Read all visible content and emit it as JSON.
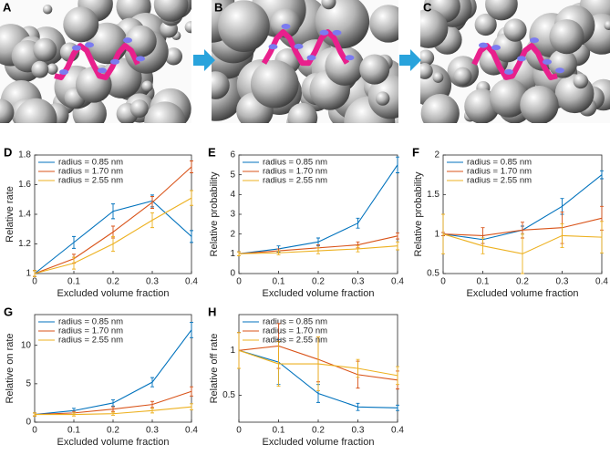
{
  "images": [
    {
      "panel": "A"
    },
    {
      "panel": "B"
    },
    {
      "panel": "C"
    }
  ],
  "chart_data": [
    {
      "type": "line",
      "panel": "D",
      "xlabel": "Excluded volume fraction",
      "ylabel": "Relative rate",
      "x": [
        0,
        0.1,
        0.2,
        0.3,
        0.4
      ],
      "xlim": [
        0,
        0.4
      ],
      "xticks": [
        0,
        0.1,
        0.2,
        0.3,
        0.4
      ],
      "ylim": [
        1,
        1.8
      ],
      "yticks": [
        1,
        1.2,
        1.4,
        1.6,
        1.8
      ],
      "legend": "upper-left",
      "series": [
        {
          "name": "radius = 0.85 nm",
          "color": "#0072bd",
          "values": [
            1,
            1.21,
            1.42,
            1.49,
            1.25
          ],
          "errors": [
            0.02,
            0.04,
            0.05,
            0.04,
            0.04
          ]
        },
        {
          "name": "radius = 1.70 nm",
          "color": "#d95319",
          "values": [
            1,
            1.1,
            1.28,
            1.48,
            1.72
          ],
          "errors": [
            0.02,
            0.03,
            0.04,
            0.04,
            0.04
          ]
        },
        {
          "name": "radius = 2.55 nm",
          "color": "#edb120",
          "values": [
            1,
            1.07,
            1.2,
            1.36,
            1.51
          ],
          "errors": [
            0.02,
            0.04,
            0.05,
            0.05,
            0.05
          ]
        }
      ]
    },
    {
      "type": "line",
      "panel": "E",
      "xlabel": "Excluded volume fraction",
      "ylabel": "Relative probability",
      "x": [
        0,
        0.1,
        0.2,
        0.3,
        0.4
      ],
      "xlim": [
        0,
        0.4
      ],
      "xticks": [
        0,
        0.1,
        0.2,
        0.3,
        0.4
      ],
      "ylim": [
        0,
        6
      ],
      "yticks": [
        0,
        1,
        2,
        3,
        4,
        5,
        6
      ],
      "legend": "upper-left",
      "series": [
        {
          "name": "radius = 0.85 nm",
          "color": "#0072bd",
          "values": [
            1,
            1.25,
            1.6,
            2.55,
            5.5
          ],
          "errors": [
            0.1,
            0.15,
            0.2,
            0.25,
            0.4
          ]
        },
        {
          "name": "radius = 1.70 nm",
          "color": "#d95319",
          "values": [
            1,
            1.15,
            1.3,
            1.45,
            1.9
          ],
          "errors": [
            0.1,
            0.1,
            0.15,
            0.15,
            0.15
          ]
        },
        {
          "name": "radius = 2.55 nm",
          "color": "#edb120",
          "values": [
            1,
            1.05,
            1.15,
            1.25,
            1.4
          ],
          "errors": [
            0.1,
            0.1,
            0.15,
            0.15,
            0.2
          ]
        }
      ]
    },
    {
      "type": "line",
      "panel": "F",
      "xlabel": "Excluded volume fraction",
      "ylabel": "Relative probability",
      "x": [
        0,
        0.1,
        0.2,
        0.3,
        0.4
      ],
      "xlim": [
        0,
        0.4
      ],
      "xticks": [
        0,
        0.1,
        0.2,
        0.3,
        0.4
      ],
      "ylim": [
        0.5,
        2
      ],
      "yticks": [
        0.5,
        1,
        1.5,
        2
      ],
      "legend": "upper-left",
      "series": [
        {
          "name": "radius = 0.85 nm",
          "color": "#0072bd",
          "values": [
            1,
            0.93,
            1.05,
            1.35,
            1.75
          ],
          "errors": [
            0.02,
            0.05,
            0.05,
            0.1,
            0.05
          ]
        },
        {
          "name": "radius = 1.70 nm",
          "color": "#d95319",
          "values": [
            1,
            0.98,
            1.05,
            1.08,
            1.2
          ],
          "errors": [
            0.02,
            0.1,
            0.1,
            0.2,
            0.15
          ]
        },
        {
          "name": "radius = 2.55 nm",
          "color": "#edb120",
          "values": [
            1,
            0.85,
            0.75,
            0.98,
            0.96
          ],
          "errors": [
            0.25,
            0.1,
            0.25,
            0.15,
            0.2
          ]
        }
      ]
    },
    {
      "type": "line",
      "panel": "G",
      "xlabel": "Excluded volume fraction",
      "ylabel": "Relative on rate",
      "x": [
        0,
        0.1,
        0.2,
        0.3,
        0.4
      ],
      "xlim": [
        0,
        0.4
      ],
      "xticks": [
        0,
        0.1,
        0.2,
        0.3,
        0.4
      ],
      "ylim": [
        0,
        14
      ],
      "yticks": [
        0,
        5,
        10
      ],
      "legend": "upper-left",
      "series": [
        {
          "name": "radius = 0.85 nm",
          "color": "#0072bd",
          "values": [
            1,
            1.5,
            2.5,
            5.2,
            12
          ],
          "errors": [
            0.2,
            0.3,
            0.4,
            0.6,
            1
          ]
        },
        {
          "name": "radius = 1.70 nm",
          "color": "#d95319",
          "values": [
            1,
            1.2,
            1.7,
            2.3,
            4
          ],
          "errors": [
            0.2,
            0.2,
            0.3,
            0.4,
            0.6
          ]
        },
        {
          "name": "radius = 2.55 nm",
          "color": "#edb120",
          "values": [
            1,
            1,
            1.1,
            1.5,
            2
          ],
          "errors": [
            0.2,
            0.2,
            0.2,
            0.3,
            0.4
          ]
        }
      ]
    },
    {
      "type": "line",
      "panel": "H",
      "xlabel": "Excluded volume fraction",
      "ylabel": "Relative off rate",
      "x": [
        0,
        0.1,
        0.2,
        0.3,
        0.4
      ],
      "xlim": [
        0,
        0.4
      ],
      "xticks": [
        0,
        0.1,
        0.2,
        0.3,
        0.4
      ],
      "ylim": [
        0.2,
        1.4
      ],
      "yticks": [
        0.5,
        1
      ],
      "legend": "upper-left",
      "series": [
        {
          "name": "radius = 0.85 nm",
          "color": "#0072bd",
          "values": [
            1,
            0.87,
            0.52,
            0.37,
            0.36
          ],
          "errors": [
            0.2,
            0.25,
            0.1,
            0.04,
            0.03
          ]
        },
        {
          "name": "radius = 1.70 nm",
          "color": "#d95319",
          "values": [
            1,
            1.05,
            0.9,
            0.73,
            0.67
          ],
          "errors": [
            0.2,
            0.25,
            0.25,
            0.15,
            0.1
          ]
        },
        {
          "name": "radius = 2.55 nm",
          "color": "#edb120",
          "values": [
            1,
            0.85,
            0.85,
            0.8,
            0.72
          ],
          "errors": [
            0.2,
            0.25,
            0.3,
            0.1,
            0.1
          ]
        }
      ]
    }
  ]
}
